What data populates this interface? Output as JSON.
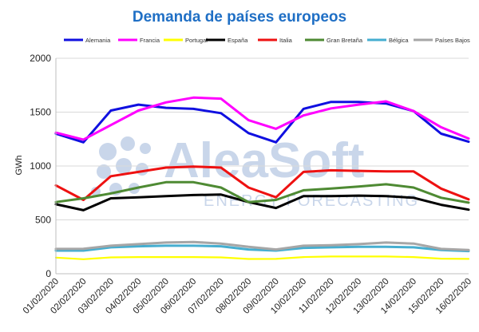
{
  "watermark": {
    "brand": "AleaSoft",
    "tagline": "ENERGY FORECASTING"
  },
  "chart_data": {
    "type": "line",
    "title": "Demanda de países europeos",
    "xlabel": "",
    "ylabel": "GWh",
    "ylim": [
      0,
      2000
    ],
    "yticks": [
      0,
      500,
      1000,
      1500,
      2000
    ],
    "grid": true,
    "legend_position": "top",
    "categories": [
      "01/02/2020",
      "02/02/2020",
      "03/02/2020",
      "04/02/2020",
      "05/02/2020",
      "06/02/2020",
      "07/02/2020",
      "08/02/2020",
      "09/02/2020",
      "10/02/2020",
      "11/02/2020",
      "12/02/2020",
      "13/02/2020",
      "14/02/2020",
      "15/02/2020",
      "16/02/2020"
    ],
    "series": [
      {
        "name": "Alemania",
        "color": "#1010e0",
        "values": [
          1300,
          1220,
          1515,
          1570,
          1540,
          1530,
          1490,
          1305,
          1220,
          1530,
          1595,
          1595,
          1580,
          1510,
          1300,
          1225
        ]
      },
      {
        "name": "Francia",
        "color": "#ff00ff",
        "values": [
          1310,
          1245,
          1380,
          1515,
          1590,
          1635,
          1625,
          1425,
          1345,
          1470,
          1535,
          1570,
          1600,
          1510,
          1360,
          1255
        ]
      },
      {
        "name": "Portugal",
        "color": "#ffff00",
        "values": [
          150,
          135,
          152,
          155,
          155,
          155,
          152,
          137,
          138,
          155,
          160,
          160,
          160,
          155,
          140,
          138
        ]
      },
      {
        "name": "España",
        "color": "#000000",
        "values": [
          645,
          590,
          700,
          710,
          720,
          730,
          735,
          665,
          610,
          720,
          720,
          725,
          720,
          705,
          640,
          595
        ]
      },
      {
        "name": "Italia",
        "color": "#ee1111",
        "values": [
          820,
          685,
          905,
          945,
          985,
          995,
          985,
          800,
          710,
          945,
          960,
          955,
          950,
          950,
          790,
          690
        ]
      },
      {
        "name": "Gran Bretaña",
        "color": "#4e8a33",
        "values": [
          665,
          700,
          745,
          800,
          850,
          850,
          800,
          665,
          685,
          775,
          790,
          810,
          830,
          800,
          705,
          660
        ]
      },
      {
        "name": "Bélgica",
        "color": "#45aed0",
        "values": [
          215,
          215,
          245,
          255,
          260,
          260,
          255,
          225,
          215,
          240,
          245,
          250,
          250,
          245,
          220,
          210
        ]
      },
      {
        "name": "Países Bajos",
        "color": "#a6a6a6",
        "values": [
          230,
          232,
          260,
          275,
          290,
          295,
          280,
          250,
          225,
          260,
          265,
          275,
          290,
          280,
          230,
          220
        ]
      }
    ]
  }
}
